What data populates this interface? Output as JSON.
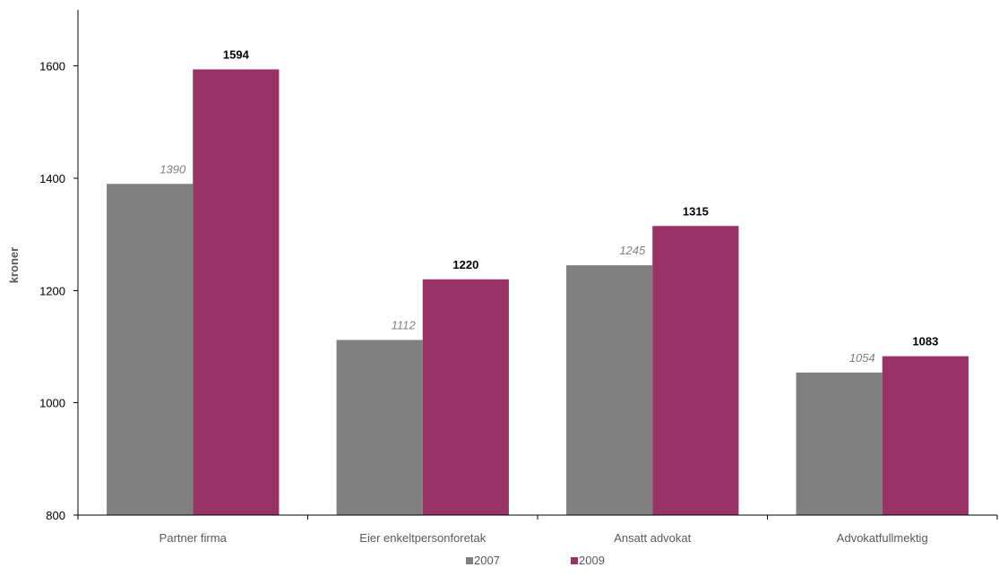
{
  "chart_data": {
    "type": "bar",
    "categories": [
      "Partner firma",
      "Eier enkeltpersonforetak",
      "Ansatt advokat",
      "Advokatfullmektig"
    ],
    "series": [
      {
        "name": "2007",
        "values": [
          1390,
          1112,
          1245,
          1054
        ],
        "color": "#808080",
        "label_style": "italic"
      },
      {
        "name": "2009",
        "values": [
          1594,
          1220,
          1315,
          1083
        ],
        "color": "#993366",
        "label_style": "bold"
      }
    ],
    "ylabel": "kroner",
    "xlabel": "",
    "ylim": [
      800,
      1700
    ],
    "yticks": [
      800,
      1000,
      1200,
      1400,
      1600
    ],
    "grid": false,
    "legend_position": "bottom"
  }
}
